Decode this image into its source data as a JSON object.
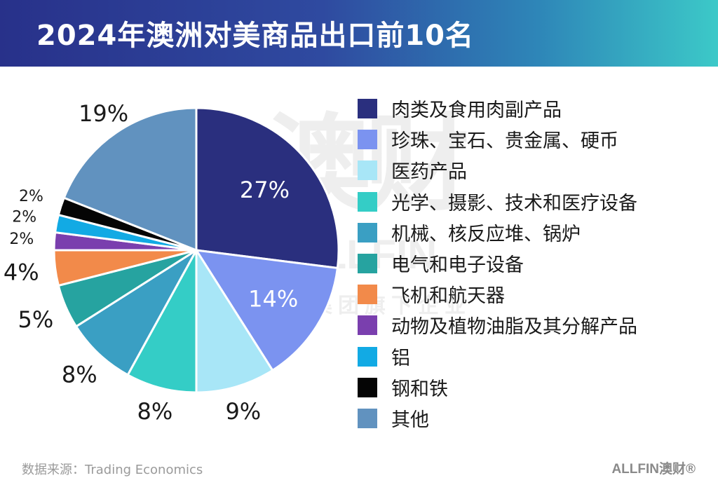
{
  "header": {
    "title": "2024年澳洲对美商品出口前10名"
  },
  "watermark": {
    "big": "澳财",
    "mid": "ALLFIN",
    "small": "博满集团旗下企业"
  },
  "footer": {
    "source": "数据来源：Trading Economics",
    "brand": "ALLFIN澳财®"
  },
  "chart_data": {
    "type": "pie",
    "title": "2024年澳洲对美商品出口前10名",
    "start": "12 o'clock, clockwise",
    "slices": [
      {
        "label": "肉类及食用肉副产品",
        "value": 27,
        "display": "27%",
        "color": "#2a2f7e"
      },
      {
        "label": "珍珠、宝石、贵金属、硬币",
        "value": 14,
        "display": "14%",
        "color": "#7b93f0"
      },
      {
        "label": "医药产品",
        "value": 9,
        "display": "9%",
        "color": "#a8e6f7"
      },
      {
        "label": "光学、摄影、技术和医疗设备",
        "value": 8,
        "display": "8%",
        "color": "#34cdc6"
      },
      {
        "label": "机械、核反应堆、锅炉",
        "value": 8,
        "display": "8%",
        "color": "#3a9fc3"
      },
      {
        "label": "电气和电子设备",
        "value": 5,
        "display": "5%",
        "color": "#26a3a0"
      },
      {
        "label": "飞机和航天器",
        "value": 4,
        "display": "4%",
        "color": "#f28a4a"
      },
      {
        "label": "动物及植物油脂及其分解产品",
        "value": 2,
        "display": "2%",
        "color": "#7a3fae"
      },
      {
        "label": "铝",
        "value": 2,
        "display": "2%",
        "color": "#12aae4"
      },
      {
        "label": "钢和铁",
        "value": 2,
        "display": "2%",
        "color": "#050505"
      },
      {
        "label": "其他",
        "value": 19,
        "display": "19%",
        "color": "#6192bf"
      }
    ]
  }
}
